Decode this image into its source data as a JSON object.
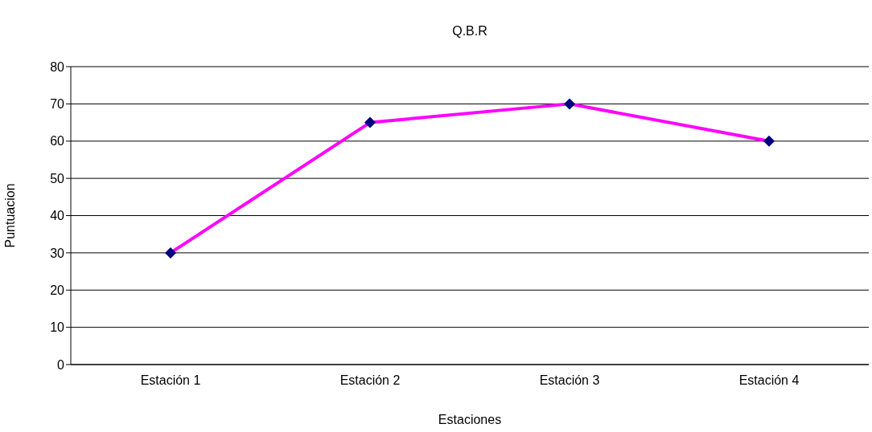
{
  "chart_data": {
    "type": "line",
    "title": "Q.B.R",
    "xlabel": "Estaciones",
    "ylabel": "Puntuacion",
    "categories": [
      "Estación 1",
      "Estación 2",
      "Estación 3",
      "Estación 4"
    ],
    "series": [
      {
        "color": "#ff00ff",
        "values": [
          30,
          65,
          70,
          60
        ]
      }
    ],
    "marker": "diamond",
    "line_style": "solid",
    "ylim": [
      0,
      80
    ],
    "yticks": [
      0,
      10,
      20,
      30,
      40,
      50,
      60,
      70,
      80
    ],
    "grid": "y"
  }
}
